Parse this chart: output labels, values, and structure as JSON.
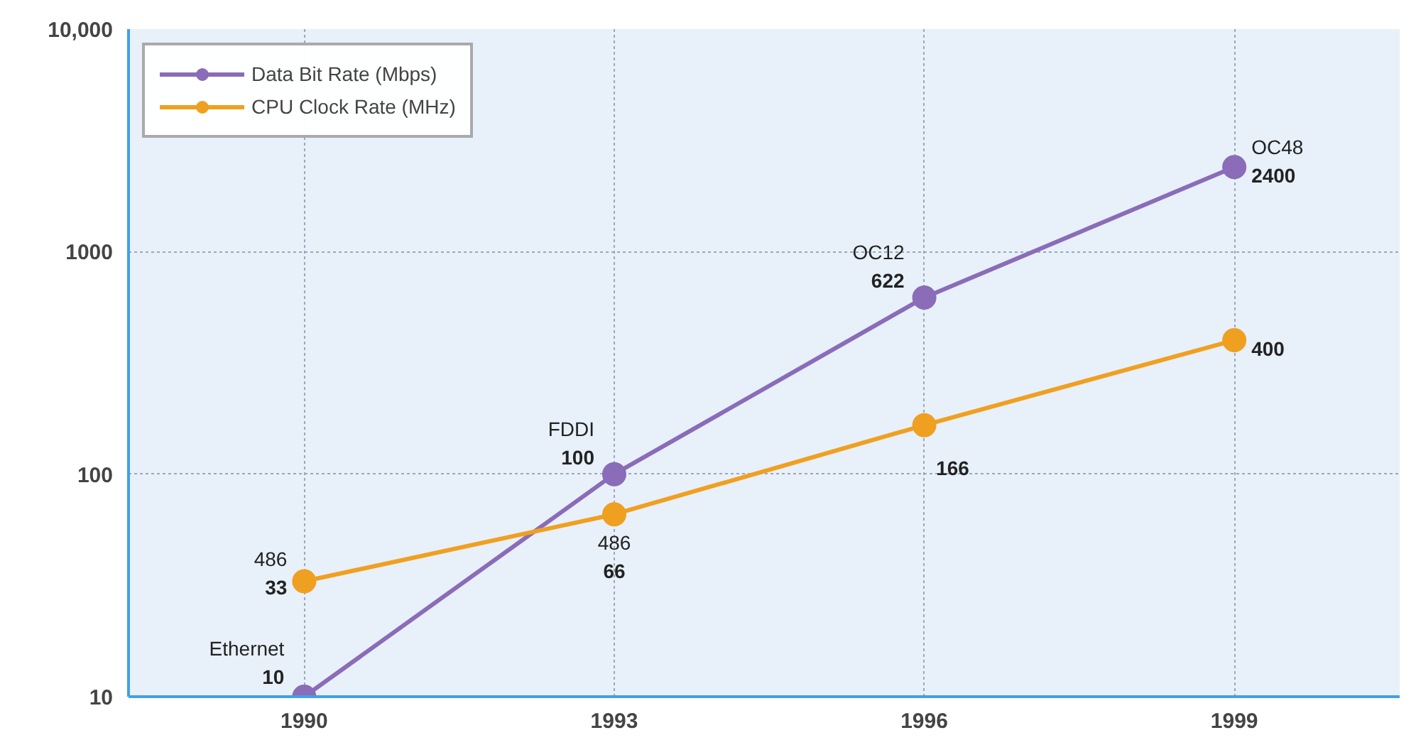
{
  "chart_data": {
    "type": "line",
    "x": [
      1990,
      1993,
      1996,
      1999
    ],
    "series": [
      {
        "name": "Data Bit Rate (Mbps)",
        "color": "#8a6cb8",
        "values": [
          10,
          100,
          622,
          2400
        ],
        "value_labels": [
          "10",
          "100",
          "622",
          "2400"
        ]
      },
      {
        "name": "CPU Clock Rate (MHz)",
        "color": "#f0a020",
        "values": [
          33,
          66,
          166,
          400
        ],
        "value_labels": [
          "33",
          "66",
          "166",
          "400"
        ]
      }
    ],
    "annotations": [
      {
        "text": "Ethernet",
        "x": 1990,
        "y": 10
      },
      {
        "text": "FDDI",
        "x": 1993,
        "y": 100
      },
      {
        "text": "OC12",
        "x": 1996,
        "y": 622
      },
      {
        "text": "OC48",
        "x": 1999,
        "y": 2400
      },
      {
        "text": "486",
        "x": 1990,
        "y": 33
      },
      {
        "text": "486",
        "x": 1993,
        "y": 66
      }
    ],
    "log": "y",
    "xlim": [
      1988.3,
      2000.6
    ],
    "ylim": [
      10,
      10000
    ],
    "xticks": [
      1990,
      1993,
      1996,
      1999
    ],
    "yticks": [
      10,
      100,
      1000,
      {
        "value": 10000,
        "label": "10,000"
      }
    ],
    "grid": true,
    "legend": "top left",
    "marker": "circle",
    "line_style": "solid"
  }
}
